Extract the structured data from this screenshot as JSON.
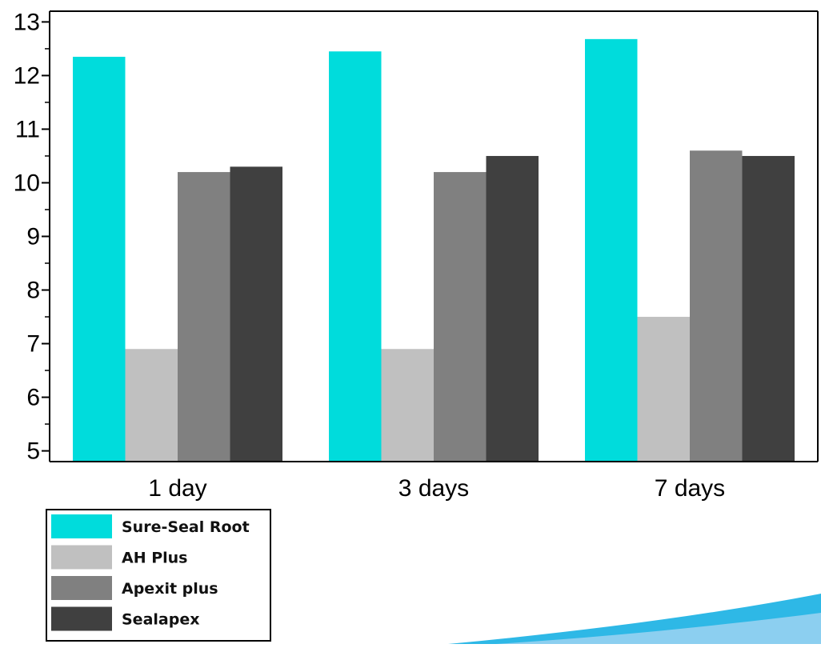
{
  "chart_data": {
    "type": "bar",
    "categories": [
      "1 day",
      "3 days",
      "7 days"
    ],
    "series": [
      {
        "name": "Sure-Seal Root",
        "color": "#00DCDC",
        "values": [
          12.35,
          12.45,
          12.68
        ]
      },
      {
        "name": "AH Plus",
        "color": "#C0C0C0",
        "values": [
          6.9,
          6.9,
          7.5
        ]
      },
      {
        "name": "Apexit plus",
        "color": "#808080",
        "values": [
          10.2,
          10.2,
          10.6
        ]
      },
      {
        "name": "Sealapex",
        "color": "#404040",
        "values": [
          10.3,
          10.5,
          10.5
        ]
      }
    ],
    "ylim": [
      4.8,
      13.2
    ],
    "yticks": [
      5,
      6,
      7,
      8,
      9,
      10,
      11,
      12,
      13
    ],
    "title": "",
    "xlabel": "",
    "ylabel": "",
    "grid": false,
    "legend_position": "bottom-left"
  },
  "decoration": {
    "swoosh_colors": [
      "#2EB8E6",
      "#8CCFF0"
    ]
  }
}
